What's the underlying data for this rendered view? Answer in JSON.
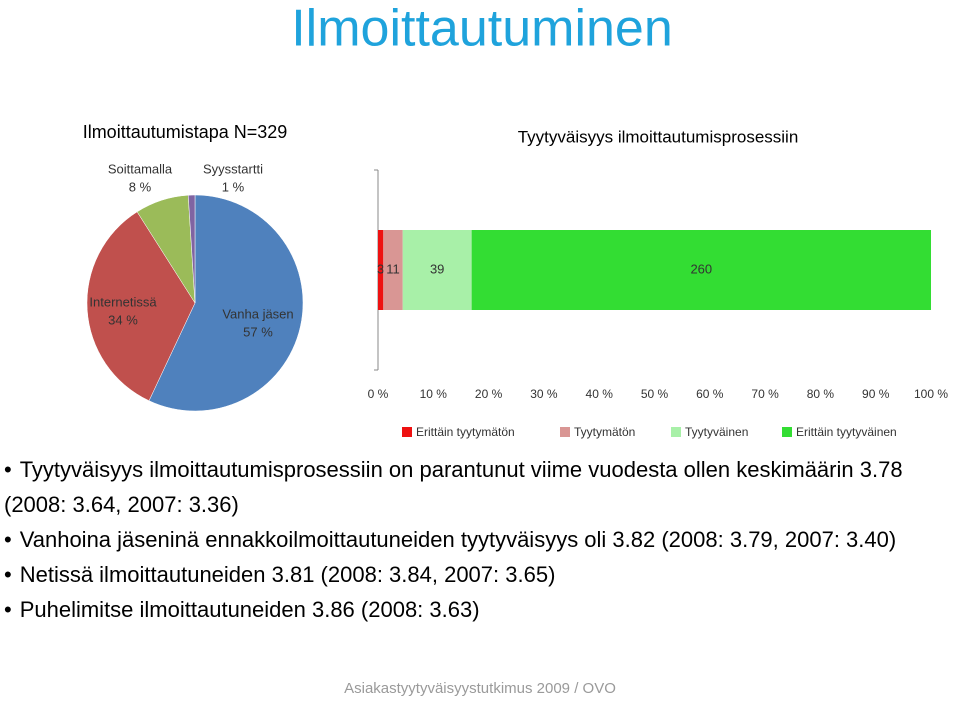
{
  "title": "Ilmoittautuminen",
  "chart_data": [
    {
      "type": "pie",
      "title": "Ilmoittautumistapa N=329",
      "categories": [
        "Vanha jäsen",
        "Internetissä",
        "Soittamalla",
        "Syysstartti"
      ],
      "values": [
        57,
        34,
        8,
        1
      ],
      "value_labels": [
        "57 %",
        "34 %",
        "8 %",
        "1 %"
      ],
      "colors": [
        "#4f81bd",
        "#c0504d",
        "#9bbb59",
        "#8064a2"
      ]
    },
    {
      "type": "stacked-bar-100",
      "title": "Tyytyväisyys ilmoittautumisprosessiin",
      "categories": [
        null
      ],
      "series": [
        {
          "name": "Erittäin tyytymätön",
          "color": "#ee1111",
          "values": [
            3
          ]
        },
        {
          "name": "Tyytymätön",
          "color": "#d99694",
          "values": [
            11
          ]
        },
        {
          "name": "Tyytyväinen",
          "color": "#a8f0a8",
          "values": [
            39
          ]
        },
        {
          "name": "Erittäin tyytyväinen",
          "color": "#33dd33",
          "values": [
            260
          ]
        }
      ],
      "xlim": [
        0,
        100
      ],
      "xticks": [
        {
          "value": 0,
          "label": "0 %"
        },
        {
          "value": 10,
          "label": "10 %"
        },
        {
          "value": 20,
          "label": "20 %"
        },
        {
          "value": 30,
          "label": "30 %"
        },
        {
          "value": 40,
          "label": "40 %"
        },
        {
          "value": 50,
          "label": "50 %"
        },
        {
          "value": 60,
          "label": "60 %"
        },
        {
          "value": 70,
          "label": "70 %"
        },
        {
          "value": 80,
          "label": "80 %"
        },
        {
          "value": 90,
          "label": "90 %"
        },
        {
          "value": 100,
          "label": "100 %"
        }
      ],
      "legend": "bottom"
    }
  ],
  "bullets": [
    "Tyytyväisyys ilmoittautumisprosessiin on parantunut viime vuodesta ollen keskimäärin 3.78 (2008: 3.64, 2007: 3.36)",
    "Vanhoina jäseninä ennakkoilmoittautuneiden tyytyväisyys oli 3.82 (2008: 3.79, 2007: 3.40)",
    "Netissä ilmoittautuneiden 3.81 (2008: 3.84, 2007: 3.65)",
    "Puhelimitse ilmoittautuneiden 3.86 (2008: 3.63)"
  ],
  "footer": "Asiakastyytyväisyystutkimus 2009 / OVO"
}
